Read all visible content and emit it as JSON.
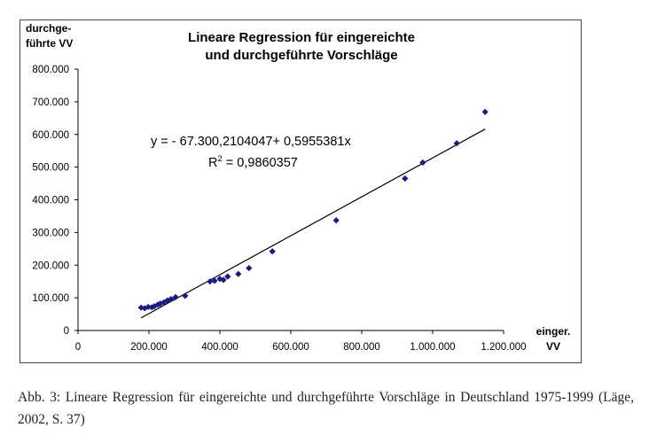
{
  "chart_data": {
    "type": "scatter",
    "title": [
      "Lineare Regression für eingereichte",
      "und durchgeführte Vorschläge"
    ],
    "ylabel": [
      "durchge-",
      "führte VV"
    ],
    "xlabel": [
      "einger.",
      "VV"
    ],
    "xlim": [
      0,
      1200000
    ],
    "ylim": [
      0,
      800000
    ],
    "x_ticks": [
      0,
      200000,
      400000,
      600000,
      800000,
      1000000,
      1200000
    ],
    "y_ticks": [
      0,
      100000,
      200000,
      300000,
      400000,
      500000,
      600000,
      700000,
      800000
    ],
    "x_tick_labels": [
      "0",
      "200.000",
      "400.000",
      "600.000",
      "800.000",
      "1.000.000",
      "1.200.000"
    ],
    "y_tick_labels": [
      "0",
      "100.000",
      "200.000",
      "300.000",
      "400.000",
      "500.000",
      "600.000",
      "700.000",
      "800.000"
    ],
    "grid": false,
    "marker_color": "#1a1a80",
    "line_color": "#000000",
    "points": [
      {
        "x": 178000,
        "y": 70000
      },
      {
        "x": 188000,
        "y": 68000
      },
      {
        "x": 198000,
        "y": 72000
      },
      {
        "x": 208000,
        "y": 71000
      },
      {
        "x": 215000,
        "y": 74000
      },
      {
        "x": 225000,
        "y": 79000
      },
      {
        "x": 232000,
        "y": 82000
      },
      {
        "x": 242000,
        "y": 86000
      },
      {
        "x": 252000,
        "y": 92000
      },
      {
        "x": 262000,
        "y": 96000
      },
      {
        "x": 275000,
        "y": 102000
      },
      {
        "x": 302000,
        "y": 106000
      },
      {
        "x": 372000,
        "y": 150000
      },
      {
        "x": 385000,
        "y": 152000
      },
      {
        "x": 400000,
        "y": 158000
      },
      {
        "x": 410000,
        "y": 155000
      },
      {
        "x": 422000,
        "y": 165000
      },
      {
        "x": 452000,
        "y": 173000
      },
      {
        "x": 482000,
        "y": 191000
      },
      {
        "x": 548000,
        "y": 242000
      },
      {
        "x": 728000,
        "y": 337000
      },
      {
        "x": 922000,
        "y": 465000
      },
      {
        "x": 972000,
        "y": 514000
      },
      {
        "x": 1068000,
        "y": 573000
      },
      {
        "x": 1148000,
        "y": 669000
      }
    ],
    "regression": {
      "intercept": -67300.2104047,
      "slope": 0.5955381,
      "x_range": [
        178000,
        1148000
      ],
      "equation": "y = - 67.300,2104047+ 0,5955381x",
      "r2_label": "R",
      "r2_exp": "2",
      "r2_value": " = 0,9860357"
    }
  },
  "caption": "Abb. 3: Lineare Regression für eingereichte und durchgeführte Vorschläge in Deutschland 1975-1999 (Läge, 2002, S. 37)"
}
